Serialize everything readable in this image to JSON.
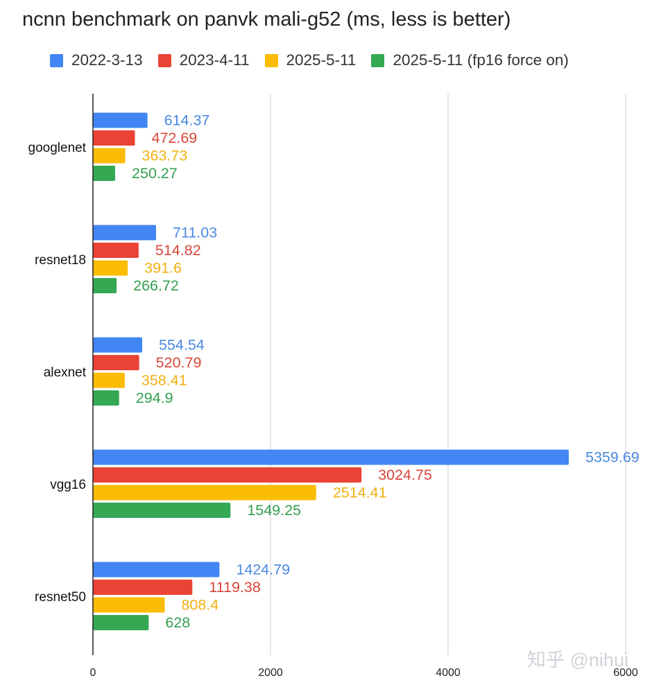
{
  "chart_data": {
    "type": "bar",
    "orientation": "horizontal",
    "title": "ncnn benchmark on panvk mali-g52 (ms, less is better)",
    "categories": [
      "googlenet",
      "resnet18",
      "alexnet",
      "vgg16",
      "resnet50"
    ],
    "series": [
      {
        "name": "2022-3-13",
        "color": "#4285F4",
        "label_color": "#4A88E0",
        "values": [
          614.37,
          711.03,
          554.54,
          5359.69,
          1424.79
        ]
      },
      {
        "name": "2023-4-11",
        "color": "#EA4335",
        "label_color": "#D9453A",
        "values": [
          472.69,
          514.82,
          520.79,
          3024.75,
          1119.38
        ]
      },
      {
        "name": "2025-5-11",
        "color": "#FBBC04",
        "label_color": "#F1B10F",
        "values": [
          363.73,
          391.6,
          358.41,
          2514.41,
          808.4
        ]
      },
      {
        "name": "2025-5-11 (fp16 force on)",
        "color": "#34A853",
        "label_color": "#34A04F",
        "values": [
          250.27,
          266.72,
          294.9,
          1549.25,
          628
        ]
      }
    ],
    "value_labels": [
      [
        "614.37",
        "711.03",
        "554.54",
        "5359.69",
        "1424.79"
      ],
      [
        "472.69",
        "514.82",
        "520.79",
        "3024.75",
        "1119.38"
      ],
      [
        "363.73",
        "391.6",
        "358.41",
        "2514.41",
        "808.4"
      ],
      [
        "250.27",
        "266.72",
        "294.9",
        "1549.25",
        "628"
      ]
    ],
    "xlim": [
      0,
      6000
    ],
    "xticks": [
      0,
      2000,
      4000,
      6000
    ],
    "xtick_labels": [
      "0",
      "2000",
      "4000",
      "6000"
    ],
    "grid": true,
    "legend_position": "top",
    "xlabel": "",
    "ylabel": ""
  },
  "watermark": "知乎 @nihui"
}
